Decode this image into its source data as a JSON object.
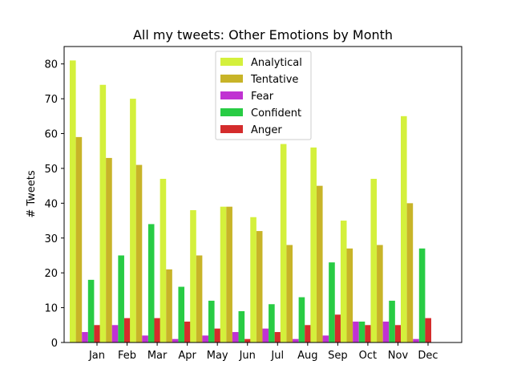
{
  "chart_data": {
    "type": "bar",
    "title": "All my tweets: Other Emotions by Month",
    "xlabel": "",
    "ylabel": "# Tweets",
    "ylim": [
      0,
      85
    ],
    "yticks": [
      0,
      10,
      20,
      30,
      40,
      50,
      60,
      70,
      80
    ],
    "grid": false,
    "legend_position": "top-center",
    "categories": [
      "Jan",
      "Feb",
      "Mar",
      "Apr",
      "May",
      "Jun",
      "Jul",
      "Aug",
      "Sep",
      "Oct",
      "Nov",
      "Dec"
    ],
    "series": [
      {
        "name": "Analytical",
        "color": "#d4f03c",
        "values": [
          81,
          74,
          70,
          47,
          38,
          39,
          36,
          57,
          56,
          35,
          47,
          65
        ]
      },
      {
        "name": "Tentative",
        "color": "#c8b428",
        "values": [
          59,
          53,
          51,
          21,
          25,
          39,
          32,
          28,
          45,
          27,
          28,
          40
        ]
      },
      {
        "name": "Fear",
        "color": "#c032d2",
        "values": [
          3,
          5,
          2,
          1,
          2,
          3,
          4,
          1,
          2,
          6,
          6,
          1
        ]
      },
      {
        "name": "Confident",
        "color": "#28cc44",
        "values": [
          18,
          25,
          34,
          16,
          12,
          9,
          11,
          13,
          23,
          6,
          12,
          27
        ]
      },
      {
        "name": "Anger",
        "color": "#d42c2c",
        "values": [
          5,
          7,
          7,
          6,
          4,
          1,
          3,
          5,
          8,
          5,
          5,
          7
        ]
      }
    ]
  }
}
